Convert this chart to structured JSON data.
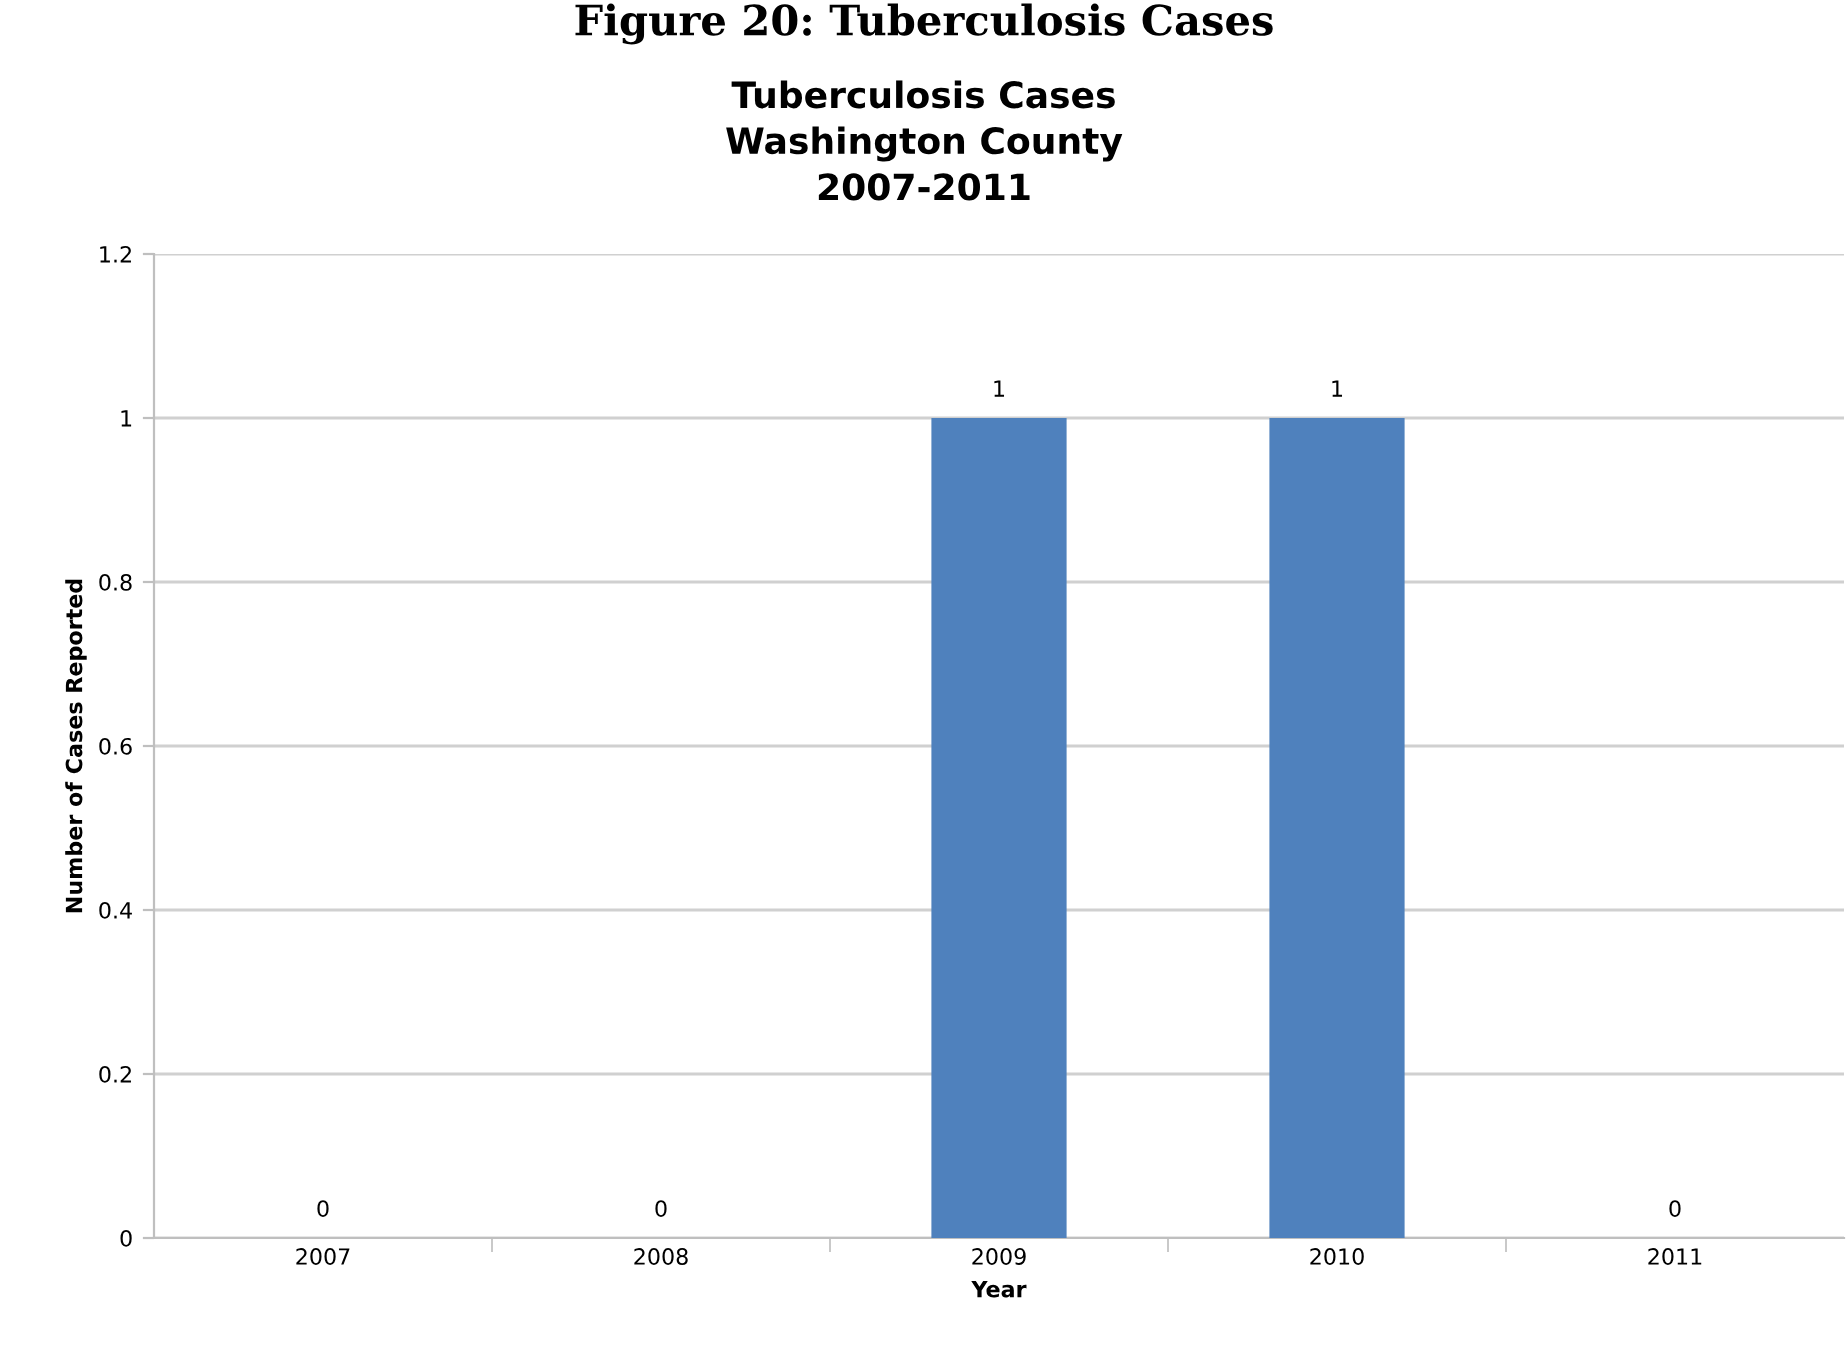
{
  "chart_data": {
    "type": "bar",
    "title": "Tuberculosis Cases\nWashington County\n2007-2011",
    "annotations": [
      "Figure 20: Tuberculosis Cases"
    ],
    "xlabel": "Year",
    "ylabel": "Number of Cases Reported",
    "categories": [
      "2007",
      "2008",
      "2009",
      "2010",
      "2011"
    ],
    "values": [
      0,
      0,
      1,
      1,
      0
    ],
    "color": "#4f81bd",
    "ylim": [
      0,
      1.2
    ],
    "yticks": [
      0,
      0.2,
      0.4,
      0.6,
      0.8,
      1,
      1.2
    ],
    "grid": "y",
    "data_labels": true,
    "legend": false
  }
}
